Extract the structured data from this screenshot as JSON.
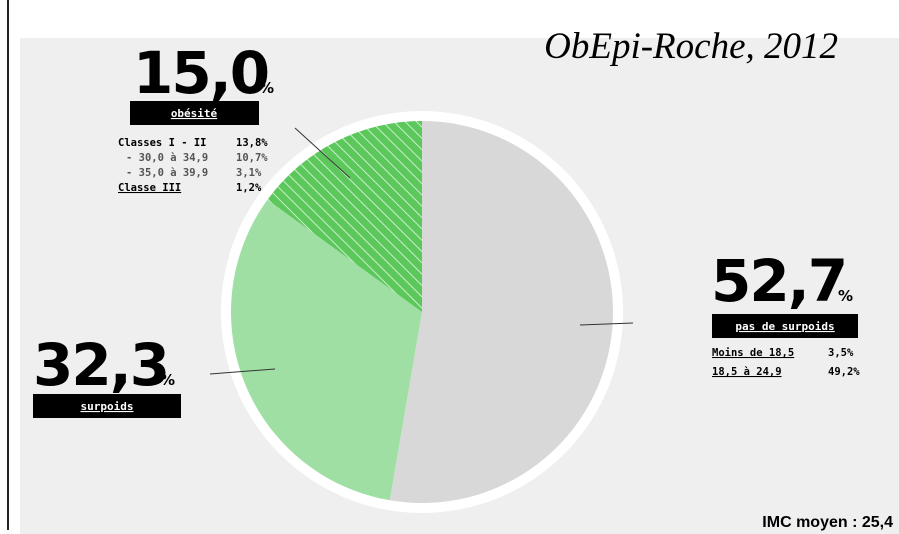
{
  "chart_data": {
    "type": "pie",
    "title": "ObEpi-Roche, 2012",
    "categories": [
      "pas de surpoids",
      "surpoids",
      "obésité"
    ],
    "values": [
      52.7,
      32.3,
      15.0
    ],
    "value_labels": [
      "52,7",
      "32,3",
      "15,0"
    ],
    "unit_label": "%",
    "colors": [
      "#d8d8d8",
      "#9fdfa4",
      "#5cc85c"
    ],
    "hatch": [
      false,
      false,
      true
    ],
    "details": {
      "pas_de_surpoids": [
        [
          "Moins de 18,5",
          "3,5%"
        ],
        [
          "18,5 à 24,9",
          "49,2%"
        ]
      ],
      "obesite": [
        [
          "Classes I - II",
          "13,8%"
        ],
        [
          "- 30,0 à 34,9",
          "10,7%"
        ],
        [
          "- 35,0 à 39,9",
          "3,1%"
        ],
        [
          "Classe III",
          "1,2%"
        ]
      ]
    },
    "annotation": "IMC moyen : 25,4"
  }
}
